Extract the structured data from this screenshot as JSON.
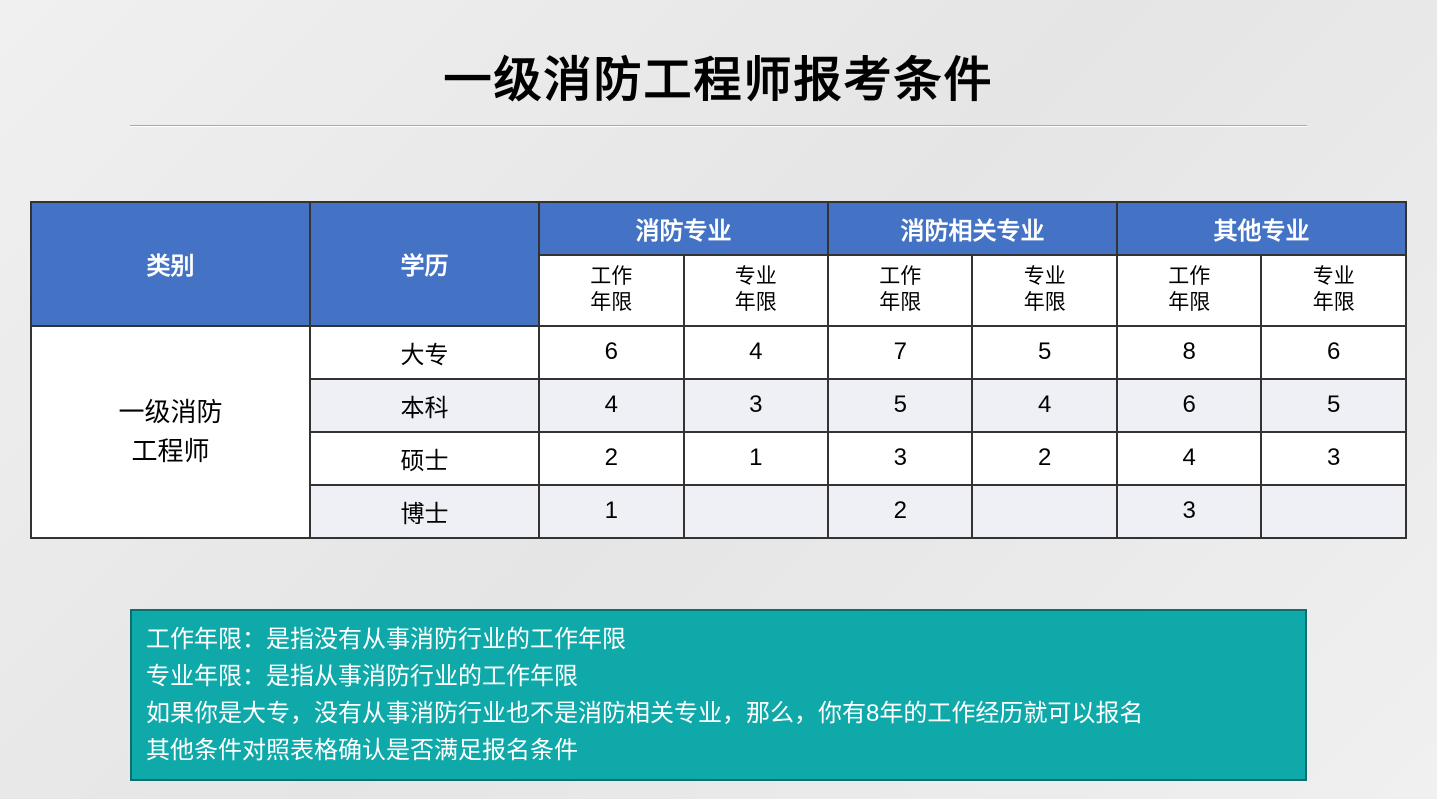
{
  "title": "一级消防工程师报考条件",
  "styling": {
    "header_bg": "#4472c4",
    "header_text": "#ffffff",
    "alt_row_bg": "#eef0f5",
    "border_color": "#333333",
    "info_bg": "#0fa9a9",
    "info_border": "#0b6f6f",
    "info_text": "#ffffff",
    "page_bg_gradient": [
      "#f0f0f0",
      "#e5e5e5",
      "#f0f0f0"
    ],
    "title_fontsize": 48,
    "header_fontsize": 24,
    "subheader_fontsize": 21,
    "cell_fontsize": 24,
    "info_fontsize": 24
  },
  "table": {
    "columns": {
      "category": "类别",
      "degree": "学历",
      "groups": [
        "消防专业",
        "消防相关专业",
        "其他专业"
      ],
      "sub": {
        "work": "工作\n年限",
        "pro": "专业\n年限"
      }
    },
    "category_label": "一级消防\n工程师",
    "rows": [
      {
        "degree": "大专",
        "vals": [
          "6",
          "4",
          "7",
          "5",
          "8",
          "6"
        ],
        "alt": false
      },
      {
        "degree": "本科",
        "vals": [
          "4",
          "3",
          "5",
          "4",
          "6",
          "5"
        ],
        "alt": true
      },
      {
        "degree": "硕士",
        "vals": [
          "2",
          "1",
          "3",
          "2",
          "4",
          "3"
        ],
        "alt": false
      },
      {
        "degree": "博士",
        "vals": [
          "1",
          "",
          "2",
          "",
          "3",
          ""
        ],
        "alt": true
      }
    ]
  },
  "info": {
    "lines": [
      "工作年限：是指没有从事消防行业的工作年限",
      "专业年限：是指从事消防行业的工作年限",
      "如果你是大专，没有从事消防行业也不是消防相关专业，那么，你有8年的工作经历就可以报名",
      "其他条件对照表格确认是否满足报名条件"
    ]
  }
}
